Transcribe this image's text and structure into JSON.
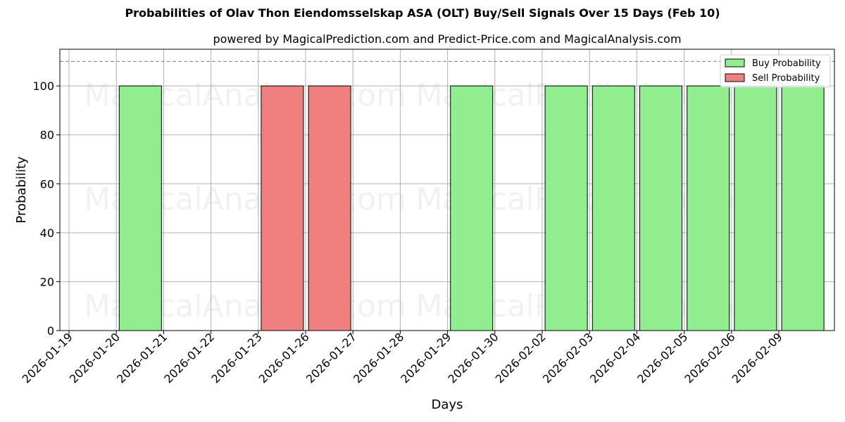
{
  "chart_data": {
    "type": "bar",
    "title": "Probabilities of Olav Thon Eiendomsselskap ASA (OLT) Buy/Sell Signals Over 15 Days (Feb 10)",
    "subtitle": "powered by MagicalPrediction.com and Predict-Price.com and MagicalAnalysis.com",
    "xlabel": "Days",
    "ylabel": "Probability",
    "ylim": [
      0,
      115
    ],
    "yticks": [
      0,
      20,
      40,
      60,
      80,
      100
    ],
    "reference_line": 110,
    "grid": true,
    "legend_position": "top-right",
    "categories": [
      "2026-01-19",
      "2026-01-20",
      "2026-01-21",
      "2026-01-22",
      "2026-01-23",
      "2026-01-26",
      "2026-01-27",
      "2026-01-28",
      "2026-01-29",
      "2026-01-30",
      "2026-02-02",
      "2026-02-03",
      "2026-02-04",
      "2026-02-05",
      "2026-02-06",
      "2026-02-09"
    ],
    "series": [
      {
        "name": "Buy Probability",
        "color": "#90ee90",
        "values": [
          0,
          100,
          0,
          0,
          0,
          0,
          0,
          0,
          100,
          0,
          100,
          100,
          100,
          100,
          100,
          100
        ]
      },
      {
        "name": "Sell Probability",
        "color": "#f08080",
        "values": [
          0,
          0,
          0,
          0,
          100,
          100,
          0,
          0,
          0,
          0,
          0,
          0,
          0,
          0,
          0,
          0
        ]
      }
    ]
  },
  "watermarks": [
    "MagicalAnalysis.com",
    "MagicalPrediction.com"
  ]
}
